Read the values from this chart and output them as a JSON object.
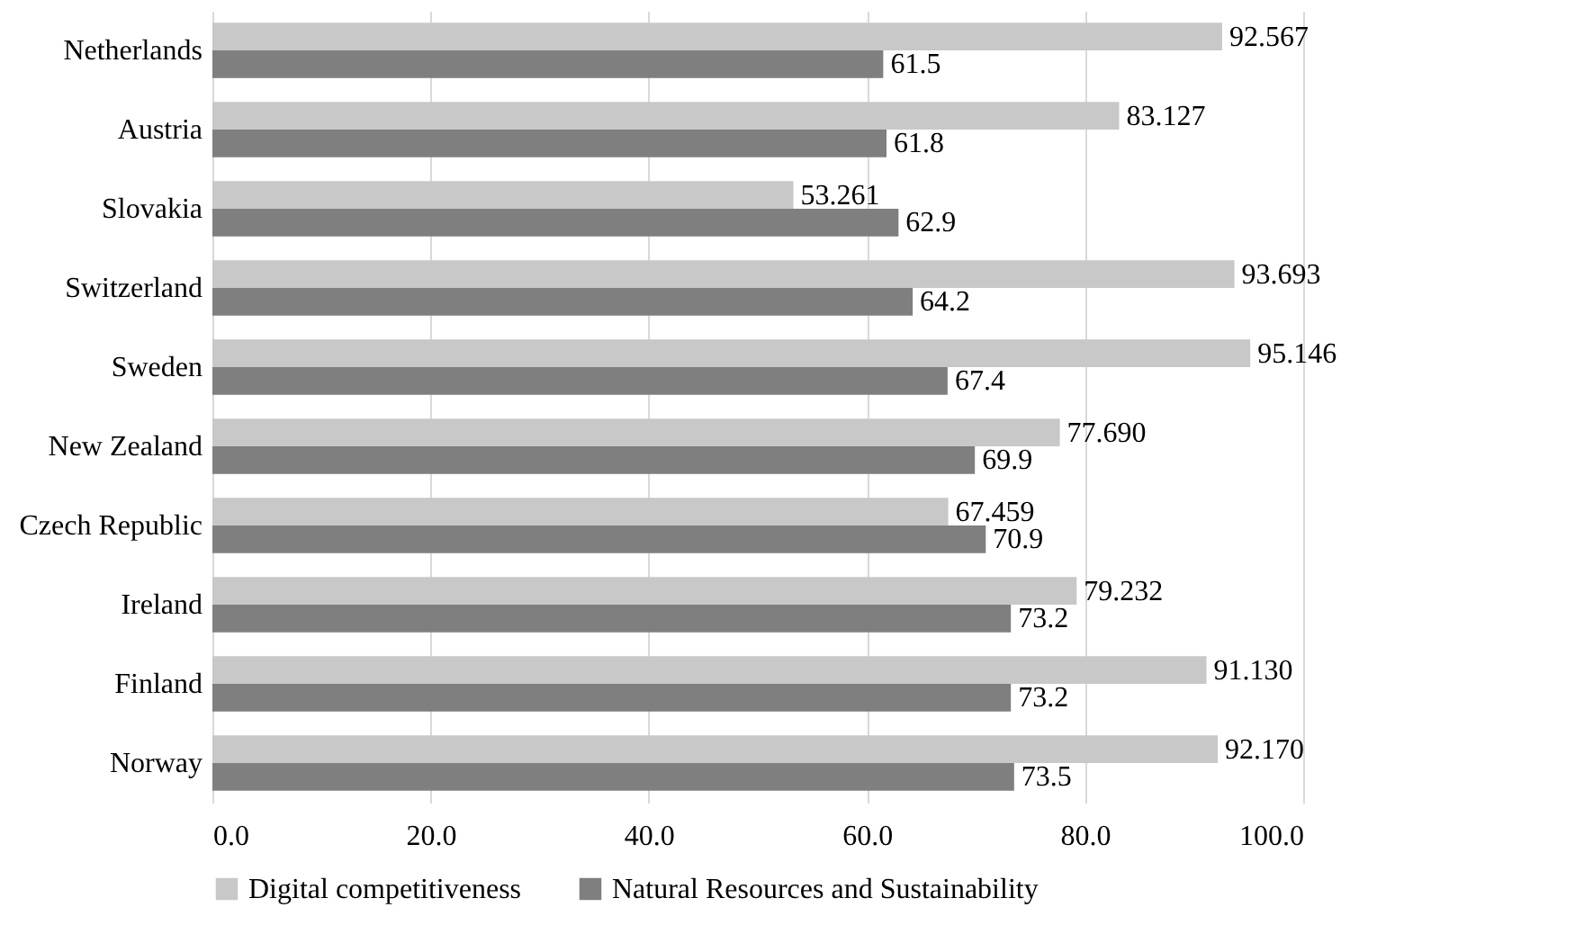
{
  "chart_data": {
    "type": "bar",
    "orientation": "horizontal",
    "categories": [
      "Netherlands",
      "Austria",
      "Slovakia",
      "Switzerland",
      "Sweden",
      "New Zealand",
      "Czech Republic",
      "Ireland",
      "Finland",
      "Norway"
    ],
    "series": [
      {
        "name": "Digital competitiveness",
        "color": "#c8c8c8",
        "values": [
          92.567,
          83.127,
          53.261,
          93.693,
          95.146,
          77.69,
          67.459,
          79.232,
          91.13,
          92.17
        ],
        "value_labels": [
          "92.567",
          "83.127",
          "53.261",
          "93.693",
          "95.146",
          "77.690",
          "67.459",
          "79.232",
          "91.130",
          "92.170"
        ]
      },
      {
        "name": "Natural Resources and Sustainability",
        "color": "#7f7f7f",
        "values": [
          61.5,
          61.8,
          62.9,
          64.2,
          67.4,
          69.9,
          70.9,
          73.2,
          73.2,
          73.5
        ],
        "value_labels": [
          "61.5",
          "61.8",
          "62.9",
          "64.2",
          "67.4",
          "69.9",
          "70.9",
          "73.2",
          "73.2",
          "73.5"
        ]
      }
    ],
    "xlim": [
      0,
      100
    ],
    "xticks": [
      {
        "value": 0,
        "label": "0.0"
      },
      {
        "value": 20,
        "label": "20.0"
      },
      {
        "value": 40,
        "label": "40.0"
      },
      {
        "value": 60,
        "label": "60.0"
      },
      {
        "value": 80,
        "label": "80.0"
      },
      {
        "value": 100,
        "label": "100.0"
      }
    ],
    "grid": "x",
    "legend": "bottom"
  }
}
